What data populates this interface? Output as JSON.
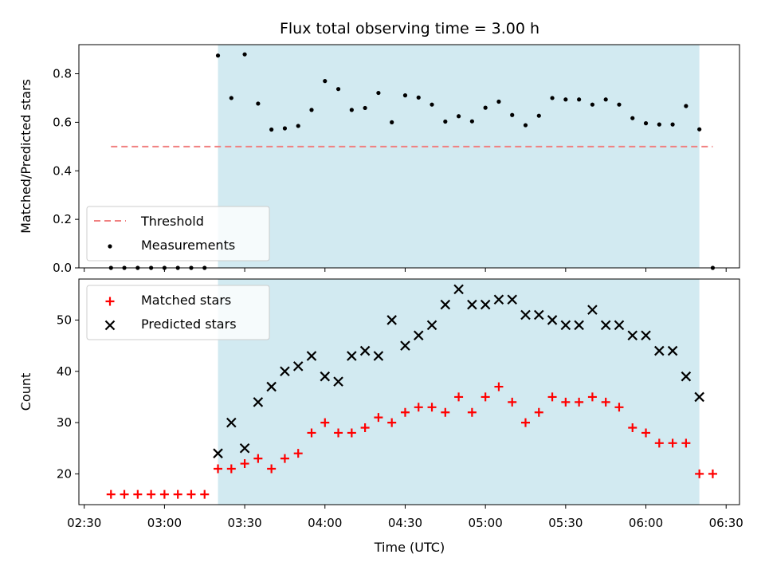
{
  "chart_data": {
    "title": "Flux total observing time = 3.00 h",
    "xlabel": "Time (UTC)",
    "x_ticks": [
      "02:30",
      "03:00",
      "03:30",
      "04:00",
      "04:30",
      "05:00",
      "05:30",
      "06:00",
      "06:30"
    ],
    "observing_window": {
      "start": "03:20",
      "end": "06:20",
      "color": "#add8e6"
    },
    "panels": [
      {
        "type": "scatter",
        "ylabel": "Matched/Predicted stars",
        "ylim": [
          0,
          0.92
        ],
        "y_ticks": [
          0.0,
          0.2,
          0.4,
          0.6,
          0.8
        ],
        "y_tick_labels": [
          "0.0",
          "0.2",
          "0.4",
          "0.6",
          "0.8"
        ],
        "legend_position": "lower-left",
        "threshold": {
          "name": "Threshold",
          "value": 0.5,
          "x_range": [
            "02:40",
            "06:25"
          ],
          "color": "#f08080"
        },
        "series": [
          {
            "name": "Measurements",
            "marker": "dot",
            "color": "#000000",
            "x": [
              "02:40",
              "02:45",
              "02:50",
              "02:55",
              "03:00",
              "03:05",
              "03:10",
              "03:15",
              "03:20",
              "03:25",
              "03:30",
              "03:35",
              "03:40",
              "03:45",
              "03:50",
              "03:55",
              "04:00",
              "04:05",
              "04:10",
              "04:15",
              "04:20",
              "04:25",
              "04:30",
              "04:35",
              "04:40",
              "04:45",
              "04:50",
              "04:55",
              "05:00",
              "05:05",
              "05:10",
              "05:15",
              "05:20",
              "05:25",
              "05:30",
              "05:35",
              "05:40",
              "05:45",
              "05:50",
              "05:55",
              "06:00",
              "06:05",
              "06:10",
              "06:15",
              "06:20",
              "06:25"
            ],
            "y": [
              0,
              0,
              0,
              0,
              0,
              0,
              0,
              0,
              0.875,
              0.7,
              0.88,
              0.677,
              0.57,
              0.575,
              0.585,
              0.651,
              0.77,
              0.737,
              0.651,
              0.659,
              0.721,
              0.6,
              0.711,
              0.702,
              0.673,
              0.603,
              0.625,
              0.604,
              0.66,
              0.685,
              0.63,
              0.588,
              0.627,
              0.7,
              0.694,
              0.694,
              0.673,
              0.694,
              0.673,
              0.617,
              0.596,
              0.591,
              0.591,
              0.667,
              0.571,
              0
            ]
          }
        ]
      },
      {
        "type": "scatter",
        "ylabel": "Count",
        "ylim": [
          14,
          58
        ],
        "y_ticks": [
          20,
          30,
          40,
          50
        ],
        "y_tick_labels": [
          "20",
          "30",
          "40",
          "50"
        ],
        "legend_position": "upper-left",
        "series": [
          {
            "name": "Matched stars",
            "marker": "plus",
            "color": "#ff0000",
            "x": [
              "02:40",
              "02:45",
              "02:50",
              "02:55",
              "03:00",
              "03:05",
              "03:10",
              "03:15",
              "03:20",
              "03:25",
              "03:30",
              "03:35",
              "03:40",
              "03:45",
              "03:50",
              "03:55",
              "04:00",
              "04:05",
              "04:10",
              "04:15",
              "04:20",
              "04:25",
              "04:30",
              "04:35",
              "04:40",
              "04:45",
              "04:50",
              "04:55",
              "05:00",
              "05:05",
              "05:10",
              "05:15",
              "05:20",
              "05:25",
              "05:30",
              "05:35",
              "05:40",
              "05:45",
              "05:50",
              "05:55",
              "06:00",
              "06:05",
              "06:10",
              "06:15",
              "06:20",
              "06:25"
            ],
            "y": [
              16,
              16,
              16,
              16,
              16,
              16,
              16,
              16,
              21,
              21,
              22,
              23,
              21,
              23,
              24,
              28,
              30,
              28,
              28,
              29,
              31,
              30,
              32,
              33,
              33,
              32,
              35,
              32,
              35,
              37,
              34,
              30,
              32,
              35,
              34,
              34,
              35,
              34,
              33,
              29,
              28,
              26,
              26,
              26,
              20,
              20
            ]
          },
          {
            "name": "Predicted stars",
            "marker": "x",
            "color": "#000000",
            "x": [
              "03:20",
              "03:25",
              "03:30",
              "03:35",
              "03:40",
              "03:45",
              "03:50",
              "03:55",
              "04:00",
              "04:05",
              "04:10",
              "04:15",
              "04:20",
              "04:25",
              "04:30",
              "04:35",
              "04:40",
              "04:45",
              "04:50",
              "04:55",
              "05:00",
              "05:05",
              "05:10",
              "05:15",
              "05:20",
              "05:25",
              "05:30",
              "05:35",
              "05:40",
              "05:45",
              "05:50",
              "05:55",
              "06:00",
              "06:05",
              "06:10",
              "06:15",
              "06:20"
            ],
            "y": [
              24,
              30,
              25,
              34,
              37,
              40,
              41,
              43,
              39,
              38,
              43,
              44,
              43,
              50,
              45,
              47,
              49,
              53,
              56,
              53,
              53,
              54,
              54,
              51,
              51,
              50,
              49,
              49,
              52,
              49,
              49,
              47,
              47,
              44,
              44,
              39,
              35
            ]
          }
        ]
      }
    ]
  }
}
